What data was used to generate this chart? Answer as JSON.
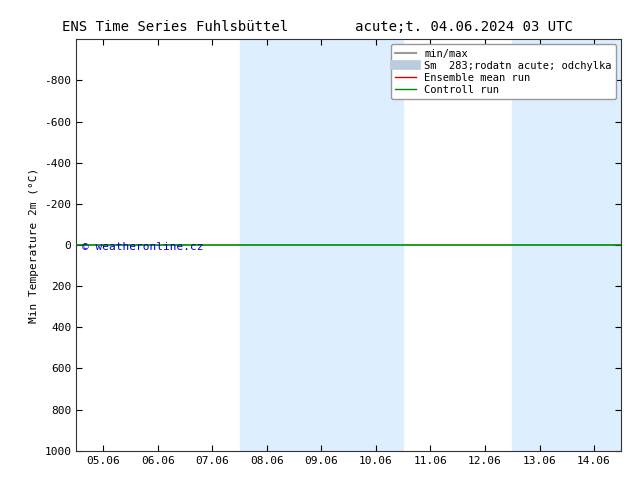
{
  "title_left": "ENS Time Series Fuhlsbüttel",
  "title_right": "acute;t. 04.06.2024 03 UTC",
  "ylabel": "Min Temperature 2m (°C)",
  "ylim_bottom": 1000,
  "ylim_top": -1000,
  "yticks": [
    -800,
    -600,
    -400,
    -200,
    0,
    200,
    400,
    600,
    800,
    1000
  ],
  "xlim_start_day": 5,
  "xlim_end_day": 14,
  "xtick_labels": [
    "05.06",
    "06.06",
    "07.06",
    "08.06",
    "09.06",
    "10.06",
    "11.06",
    "12.06",
    "13.06",
    "14.06"
  ],
  "xtick_days": [
    5,
    6,
    7,
    8,
    9,
    10,
    11,
    12,
    13,
    14
  ],
  "shaded_bands": [
    {
      "xstart": 8,
      "xend": 10
    },
    {
      "xstart": 13,
      "xend": 14
    }
  ],
  "shade_color": "#ddeeff",
  "green_line_y": 0,
  "green_line_color": "#008800",
  "watermark": "© weatheronline.cz",
  "watermark_color": "#0000cc",
  "background_color": "#ffffff",
  "plot_bg_color": "#ffffff",
  "legend_entries": [
    {
      "label": "min/max",
      "color": "#999999",
      "lw": 1.5,
      "type": "line"
    },
    {
      "label": "Sm  283;rodatn acute; odchylka",
      "color": "#bbccdd",
      "lw": 7,
      "type": "line"
    },
    {
      "label": "Ensemble mean run",
      "color": "#dd0000",
      "lw": 1.0,
      "type": "line"
    },
    {
      "label": "Controll run",
      "color": "#008800",
      "lw": 1.0,
      "type": "line"
    }
  ],
  "title_fontsize": 10,
  "label_fontsize": 8,
  "tick_fontsize": 8,
  "legend_fontsize": 7.5,
  "watermark_fontsize": 8
}
